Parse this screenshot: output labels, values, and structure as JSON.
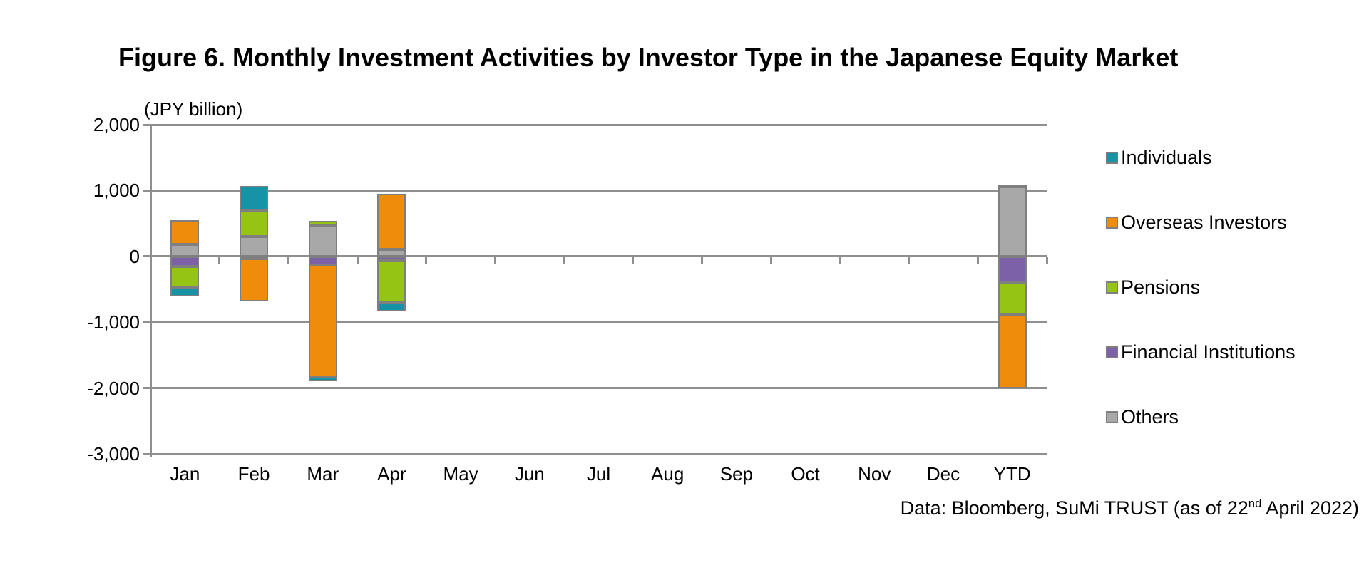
{
  "title": "Figure 6. Monthly Investment Activities by Investor Type in the Japanese Equity Market",
  "unit_label": "(JPY billion)",
  "source_note": {
    "prefix": "Data: Bloomberg, SuMi TRUST (as of 22",
    "superscript": "nd",
    "suffix": " April 2022)"
  },
  "chart_data": {
    "type": "bar",
    "stacked": true,
    "title": "Figure 6. Monthly Investment Activities by Investor Type in the Japanese Equity Market",
    "unit": "JPY billion",
    "categories": [
      "Jan",
      "Feb",
      "Mar",
      "Apr",
      "May",
      "Jun",
      "Jul",
      "Aug",
      "Sep",
      "Oct",
      "Nov",
      "Dec",
      "YTD"
    ],
    "series": [
      {
        "name": "Individuals",
        "color": "#1793a8",
        "values": [
          -130,
          380,
          -70,
          -150,
          0,
          0,
          0,
          0,
          0,
          0,
          0,
          0,
          30
        ]
      },
      {
        "name": "Overseas Investors",
        "color": "#ef8c0c",
        "values": [
          370,
          -640,
          -1700,
          850,
          0,
          0,
          0,
          0,
          0,
          0,
          0,
          0,
          -1120
        ]
      },
      {
        "name": "Pensions",
        "color": "#96c414",
        "values": [
          -330,
          390,
          70,
          -620,
          0,
          0,
          0,
          0,
          0,
          0,
          0,
          0,
          -490
        ]
      },
      {
        "name": "Financial Institutions",
        "color": "#7d61a8",
        "values": [
          -150,
          -40,
          -130,
          -70,
          0,
          0,
          0,
          0,
          0,
          0,
          0,
          0,
          -390
        ]
      },
      {
        "name": "Others",
        "color": "#a8a8a8",
        "values": [
          185,
          300,
          470,
          105,
          0,
          0,
          0,
          0,
          0,
          0,
          0,
          0,
          1060
        ]
      }
    ],
    "plot_order": [
      "Others",
      "Financial Institutions",
      "Pensions",
      "Overseas Investors",
      "Individuals"
    ],
    "ylim": [
      -3000,
      2000
    ],
    "yticks": [
      2000,
      1000,
      0,
      -1000,
      -2000,
      -3000
    ],
    "ytick_labels": [
      "2,000",
      "1,000",
      "0",
      "-1,000",
      "-2,000",
      "-3,000"
    ],
    "grid": true,
    "legend_position": "right"
  }
}
